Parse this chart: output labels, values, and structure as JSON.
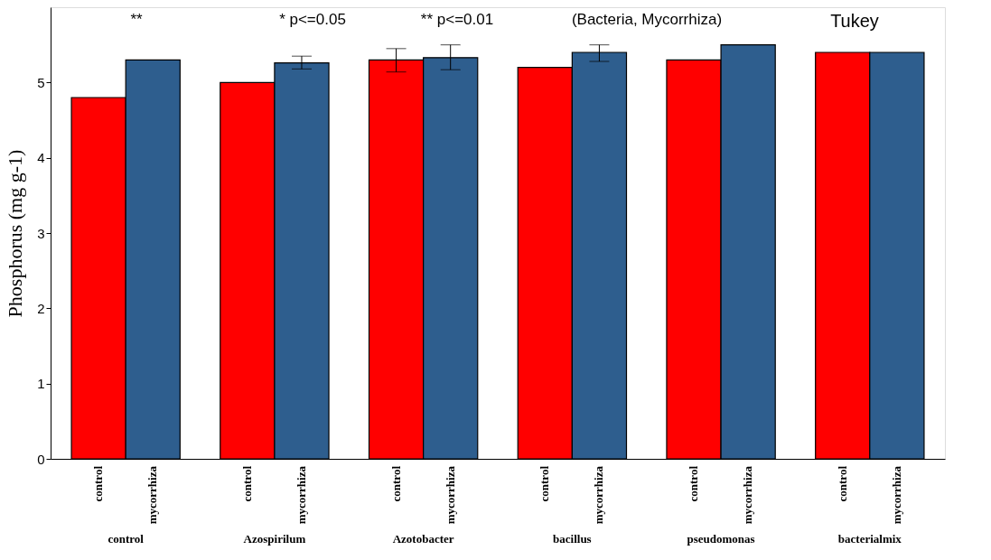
{
  "chart_data": {
    "type": "bar",
    "ylabel": "Phosphorus (mg g-1)",
    "categories": [
      "control",
      "Azospirilum",
      "Azotobacter",
      "bacillus",
      "pseudomonas",
      "bacterialmix"
    ],
    "series": [
      {
        "name": "control",
        "color": "#ff0000",
        "values": [
          4.8,
          5.0,
          5.3,
          5.2,
          5.3,
          5.4
        ],
        "errors": [
          null,
          null,
          [
            5.14,
            5.45
          ],
          null,
          null,
          null
        ]
      },
      {
        "name": "mycorrhiza",
        "color": "#2e5e8e",
        "values": [
          5.3,
          5.26,
          5.33,
          5.4,
          5.5,
          5.4
        ],
        "errors": [
          null,
          [
            5.18,
            5.35
          ],
          [
            5.17,
            5.5
          ],
          [
            5.28,
            5.5
          ],
          null,
          null
        ]
      }
    ],
    "ylim": [
      0,
      6
    ],
    "yticks": [
      0,
      1,
      2,
      3,
      4,
      5
    ],
    "grid": false,
    "legend": false,
    "annotations": [
      "**",
      "* p<=0.05",
      "** p<=0.01",
      "(Bacteria, Mycorrhiza)",
      "Tukey"
    ]
  }
}
